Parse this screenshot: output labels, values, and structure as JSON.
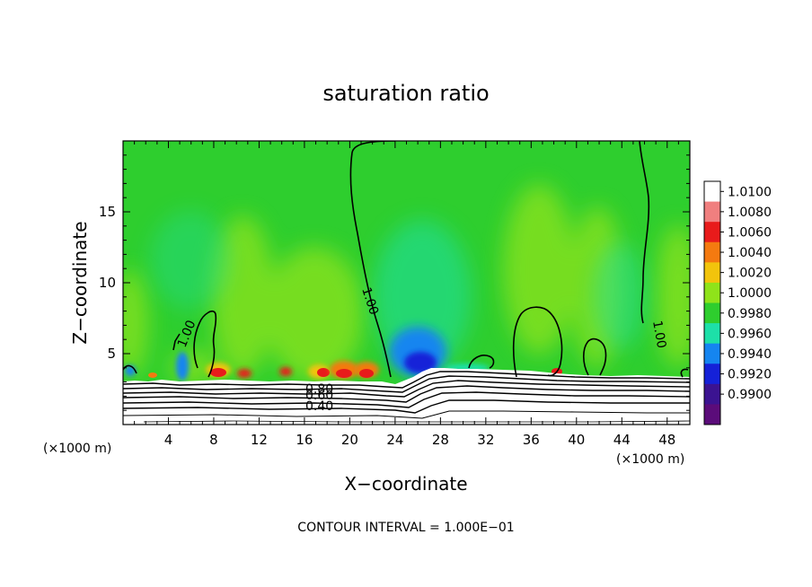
{
  "chart_data": {
    "type": "heatmap",
    "title": "saturation ratio",
    "xlabel": "X−coordinate",
    "ylabel": "Z−coordinate",
    "x_unit_label": "(×1000 m)",
    "y_unit_label": "(×1000 m)",
    "xlim": [
      0,
      50
    ],
    "ylim": [
      0,
      20
    ],
    "x_ticks": [
      4,
      8,
      12,
      16,
      20,
      24,
      28,
      32,
      36,
      40,
      44,
      48
    ],
    "x_tick_labels": [
      "4",
      "8",
      "12",
      "16",
      "20",
      "24",
      "28",
      "32",
      "36",
      "40",
      "44",
      "48"
    ],
    "y_ticks": [
      5,
      10,
      15
    ],
    "y_tick_labels": [
      "5",
      "10",
      "15"
    ],
    "colorbar": {
      "levels": [
        "1.0100",
        "1.0080",
        "1.0060",
        "1.0040",
        "1.0020",
        "1.0000",
        "0.9980",
        "0.9960",
        "0.9940",
        "0.9920",
        "0.9900"
      ],
      "colors": [
        "#ffffff",
        "#f07f7f",
        "#e81b1b",
        "#f47a10",
        "#f2c40c",
        "#8fe31a",
        "#2ece2e",
        "#1de0a8",
        "#1585f0",
        "#1521d8",
        "#3b1391",
        "#5b0c7a"
      ]
    },
    "contour_labels": [
      "1.00",
      "1.00",
      "1.00",
      "0.80",
      "0.60",
      "0.40"
    ],
    "footer": "CONTOUR INTERVAL = 1.000E−01",
    "colors": {
      "background_field": "#2ece2e",
      "light_field": "#8fe31a",
      "moist_cyan": "#1de0a8",
      "dry_blue": "#1585f0",
      "deep_blue": "#1521d8",
      "red": "#e81b1b",
      "orange": "#f47a10",
      "yellow": "#f2c40c",
      "contour": "#000000",
      "terrain_fill": "#ffffff"
    }
  }
}
